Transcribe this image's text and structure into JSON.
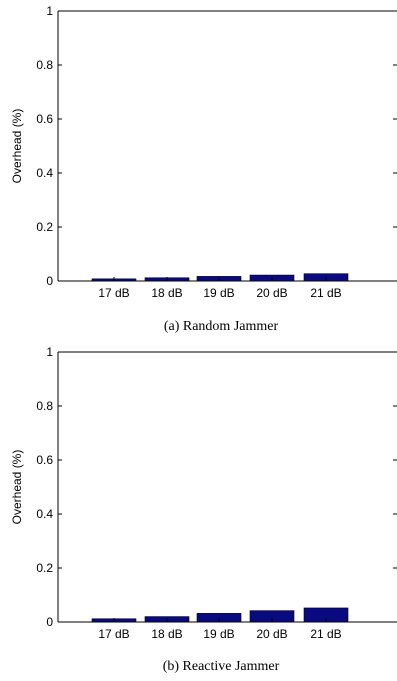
{
  "chart_data": [
    {
      "type": "bar",
      "caption": "(a) Random Jammer",
      "categories": [
        "17 dB",
        "18 dB",
        "19 dB",
        "20 dB",
        "21 dB"
      ],
      "values": [
        0.008,
        0.012,
        0.017,
        0.022,
        0.027
      ],
      "ylabel": "Overhead (%)",
      "ylim": [
        0,
        1
      ],
      "yticks": [
        "0",
        "0.2",
        "0.4",
        "0.6",
        "0.8",
        "1"
      ],
      "grid": false,
      "bar_color": "#0a0a80"
    },
    {
      "type": "bar",
      "caption": "(b) Reactive Jammer",
      "categories": [
        "17 dB",
        "18 dB",
        "19 dB",
        "20 dB",
        "21 dB"
      ],
      "values": [
        0.012,
        0.02,
        0.032,
        0.042,
        0.052
      ],
      "ylabel": "Overhead (%)",
      "ylim": [
        0,
        1
      ],
      "yticks": [
        "0",
        "0.2",
        "0.4",
        "0.6",
        "0.8",
        "1"
      ],
      "grid": false,
      "bar_color": "#0a0a80"
    }
  ]
}
